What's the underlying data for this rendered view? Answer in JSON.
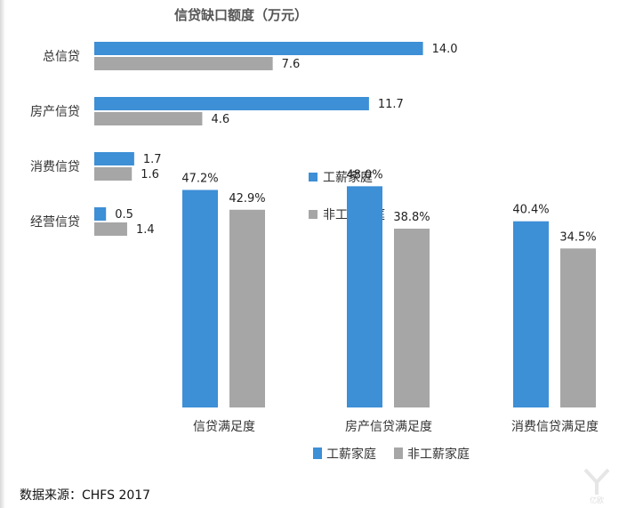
{
  "chart_data": [
    {
      "type": "bar",
      "orientation": "horizontal",
      "title": "信贷缺口额度（万元）",
      "categories": [
        "总信贷",
        "房产信贷",
        "消费信贷",
        "经营信贷"
      ],
      "series": [
        {
          "name": "工薪家庭",
          "values": [
            14.0,
            11.7,
            1.7,
            0.5
          ],
          "labels": [
            "14.0",
            "11.7",
            "1.7",
            "0.5"
          ],
          "color": "#3d8fd6"
        },
        {
          "name": "非工薪家庭",
          "values": [
            7.6,
            4.6,
            1.6,
            1.4
          ],
          "labels": [
            "7.6",
            "4.6",
            "1.6",
            "1.4"
          ],
          "color": "#a6a6a6"
        }
      ],
      "legend_position": "right",
      "grid": false
    },
    {
      "type": "bar",
      "orientation": "vertical",
      "title": "",
      "categories": [
        "信贷满足度",
        "房产信贷满足度",
        "消费信贷满足度"
      ],
      "series": [
        {
          "name": "工薪家庭",
          "values": [
            47.2,
            48.0,
            40.4
          ],
          "labels": [
            "47.2%",
            "48.0%",
            "40.4%"
          ],
          "color": "#3d8fd6"
        },
        {
          "name": "非工薪家庭",
          "values": [
            42.9,
            38.8,
            34.5
          ],
          "labels": [
            "42.9%",
            "38.8%",
            "34.5%"
          ],
          "color": "#a6a6a6"
        }
      ],
      "legend_position": "bottom",
      "grid": false
    }
  ],
  "source": "数据来源：CHFS 2017",
  "watermark_text": "亿欧"
}
